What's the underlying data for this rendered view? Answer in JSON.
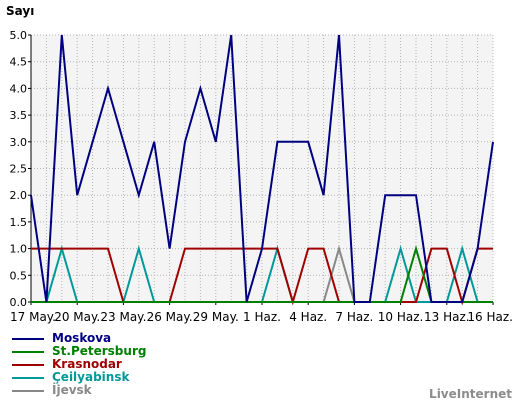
{
  "chart_data": {
    "type": "line",
    "ylabel": "Sayı",
    "xlabel": "",
    "title": "",
    "ylim": [
      0,
      5
    ],
    "yticks": [
      "0.0",
      "0.5",
      "1.0",
      "1.5",
      "2.0",
      "2.5",
      "3.0",
      "3.5",
      "4.0",
      "4.5",
      "5.0"
    ],
    "x_labels": [
      "17 May.",
      "20 May.",
      "23 May.",
      "26 May.",
      "29 May.",
      "1 Haz.",
      "4 Haz.",
      "7 Haz.",
      "10 Haz.",
      "13 Haz.",
      "16 Haz."
    ],
    "grid": true,
    "legend_position": "bottom-left",
    "series": [
      {
        "name": "Moskova",
        "color": "#000080",
        "values": [
          2,
          0,
          5,
          2,
          3,
          4,
          3,
          2,
          3,
          1,
          3,
          4,
          3,
          5,
          0,
          1,
          3,
          3,
          3,
          2,
          5,
          0,
          0,
          2,
          2,
          2,
          0,
          0,
          0,
          1,
          3
        ]
      },
      {
        "name": "St.Petersburg",
        "color": "#008000",
        "values": [
          0,
          0,
          0,
          0,
          0,
          0,
          0,
          0,
          0,
          0,
          0,
          0,
          0,
          0,
          0,
          0,
          0,
          0,
          0,
          0,
          0,
          0,
          0,
          0,
          0,
          1,
          0,
          0,
          0,
          0,
          0
        ]
      },
      {
        "name": "Krasnodar",
        "color": "#a00000",
        "values": [
          1,
          1,
          1,
          1,
          1,
          1,
          0,
          0,
          0,
          0,
          1,
          1,
          1,
          1,
          1,
          1,
          1,
          0,
          1,
          1,
          0,
          0,
          0,
          0,
          0,
          0,
          1,
          1,
          0,
          1,
          1
        ]
      },
      {
        "name": "Çeilyabinsk",
        "color": "#009999",
        "values": [
          0,
          0,
          1,
          0,
          0,
          0,
          0,
          1,
          0,
          0,
          0,
          0,
          0,
          0,
          0,
          0,
          1,
          0,
          0,
          0,
          0,
          0,
          0,
          0,
          1,
          0,
          0,
          0,
          1,
          0,
          0
        ]
      },
      {
        "name": "İjevsk",
        "color": "#888888",
        "values": [
          0,
          0,
          0,
          0,
          0,
          0,
          0,
          0,
          0,
          0,
          0,
          0,
          0,
          0,
          0,
          0,
          0,
          0,
          0,
          0,
          1,
          0,
          0,
          0,
          0,
          0,
          0,
          0,
          0,
          0,
          0
        ]
      }
    ]
  },
  "credit": "LiveInternet"
}
